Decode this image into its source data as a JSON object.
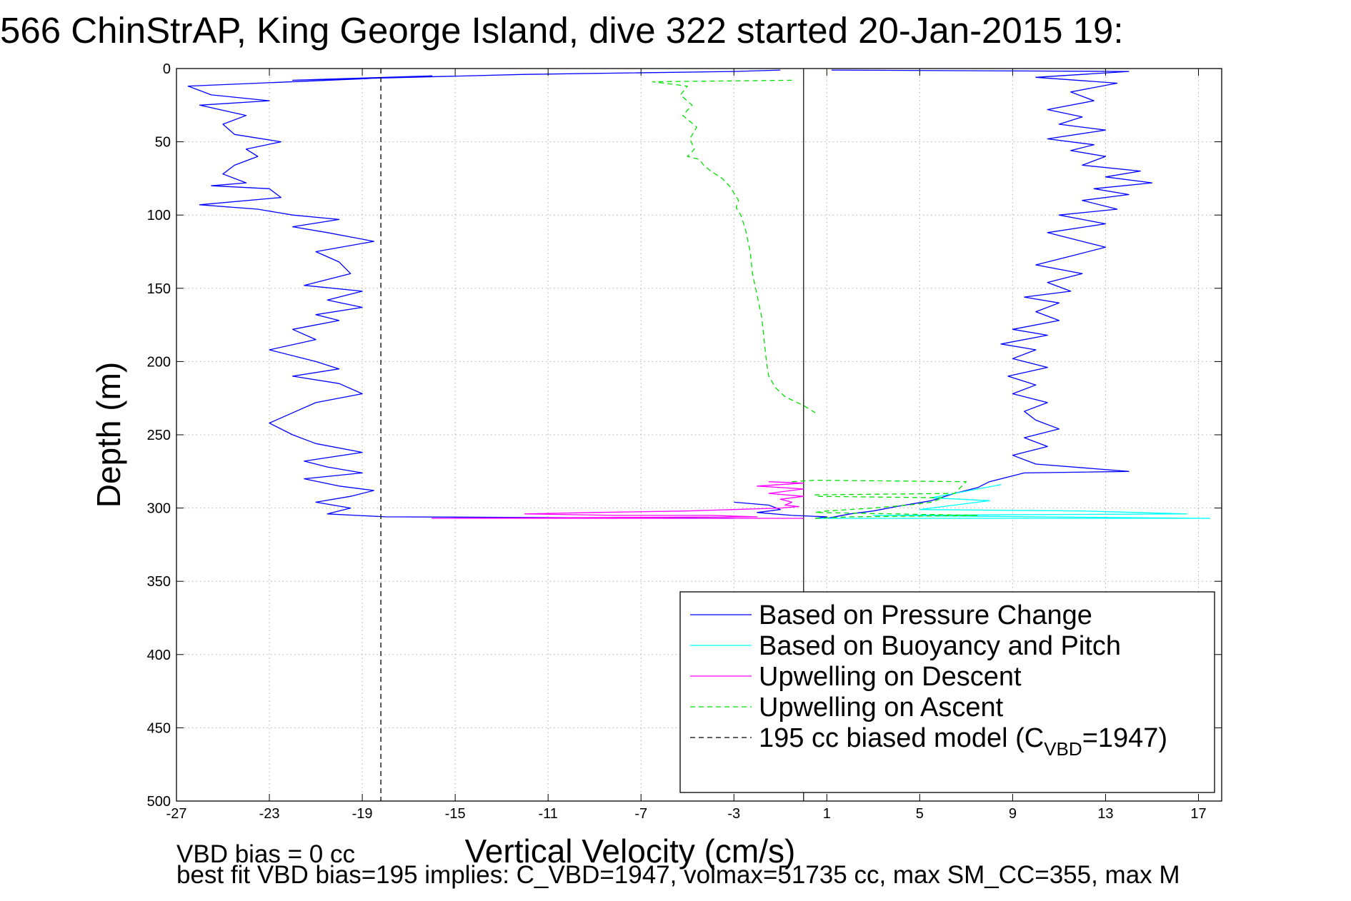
{
  "chart_data": {
    "type": "line",
    "title": "566 ChinStrAP, King George Island, dive 322 started 20-Jan-2015 19:",
    "xlabel": "Vertical Velocity (cm/s)",
    "ylabel": "Depth (m)",
    "xlim": [
      -27,
      18
    ],
    "ylim": [
      0,
      500
    ],
    "y_reversed": true,
    "grid": true,
    "legend_position": "lower-right",
    "x_ticks": [
      "-27",
      "-23",
      "-19",
      "-15",
      "-11",
      "-7",
      "-3",
      "1",
      "5",
      "9",
      "13",
      "17"
    ],
    "y_ticks": [
      "0",
      "50",
      "100",
      "150",
      "200",
      "250",
      "300",
      "350",
      "400",
      "450",
      "500"
    ],
    "notes": [
      "VBD bias = 0 cc",
      "best fit VBD bias=195 implies: C_VBD=1947, volmax=51735 cc, max SM_CC=355, max M"
    ],
    "series": [
      {
        "name": "Based on Pressure Change",
        "color": "#0000ff",
        "dash": "solid",
        "segments": [
          {
            "x": [
              -1.0,
              -3.0,
              -12.0,
              -22.0,
              -16.0,
              -26.5,
              -25.5,
              -23.0,
              -26.0,
              -24.0,
              -25.0,
              -24.5,
              -22.5,
              -24.0,
              -23.5,
              -24.5,
              -25.0,
              -24.0,
              -25.5,
              -23.0,
              -22.5,
              -26.0,
              -23.5,
              -22.0,
              -20.0,
              -22.0,
              -20.5,
              -18.5,
              -21.0,
              -20.0,
              -19.5,
              -21.5,
              -19.0,
              -20.5,
              -19.0,
              -21.0,
              -20.0,
              -22.0,
              -21.0,
              -23.0,
              -21.0,
              -20.0,
              -22.0,
              -20.0,
              -19.0,
              -21.0,
              -22.0,
              -23.0,
              -22.0,
              -21.0,
              -19.0,
              -21.5,
              -20.5,
              -19.0,
              -21.5,
              -20.0,
              -18.5,
              -19.5,
              -21.0,
              -19.5,
              -20.5,
              -18.0,
              -3.0
            ],
            "y": [
              1,
              2,
              4,
              8,
              5,
              12,
              18,
              22,
              25,
              32,
              38,
              45,
              50,
              55,
              60,
              66,
              72,
              78,
              80,
              82,
              88,
              93,
              96,
              100,
              103,
              108,
              112,
              118,
              125,
              132,
              140,
              148,
              152,
              158,
              163,
              168,
              172,
              178,
              185,
              192,
              200,
              205,
              210,
              215,
              222,
              228,
              235,
              242,
              250,
              256,
              262,
              268,
              272,
              276,
              280,
              285,
              288,
              292,
              296,
              300,
              304,
              306,
              307
            ]
          },
          {
            "x": [
              -3.0,
              -1.5,
              -1.0,
              -2.0,
              -0.5,
              1.0,
              0.5
            ],
            "y": [
              296,
              298,
              301,
              303,
              305,
              306,
              307
            ]
          },
          {
            "x": [
              1.2,
              14.0,
              10.0,
              13.5,
              11.5,
              12.5,
              10.5,
              12.0,
              11.0,
              13.0,
              10.5,
              12.5,
              11.5,
              13.0,
              12.0,
              14.5,
              13.0,
              15.0,
              12.5,
              14.0,
              12.0,
              13.5,
              11.0,
              13.0,
              10.5,
              12.0,
              13.0,
              11.5,
              10.0,
              12.0,
              10.5,
              11.5,
              9.5,
              11.0,
              10.0,
              11.0,
              9.0,
              10.5,
              8.5,
              10.0,
              9.0,
              10.5,
              8.8,
              10.0,
              9.0,
              10.5,
              9.5,
              10.0,
              11.0,
              9.5,
              10.5,
              9.0,
              10.0,
              14.0,
              9.5,
              9.0,
              8.0,
              7.5,
              6.5,
              5.5,
              4.0,
              3.0,
              2.0,
              1.0
            ],
            "y": [
              1,
              2,
              6,
              10,
              16,
              22,
              28,
              33,
              38,
              42,
              48,
              52,
              56,
              60,
              66,
              70,
              74,
              78,
              82,
              86,
              90,
              96,
              100,
              106,
              112,
              118,
              122,
              128,
              134,
              140,
              146,
              152,
              156,
              160,
              166,
              172,
              178,
              182,
              188,
              192,
              198,
              204,
              210,
              216,
              222,
              228,
              234,
              240,
              246,
              252,
              258,
              264,
              270,
              275,
              276,
              278,
              282,
              286,
              290,
              295,
              299,
              302,
              304,
              307
            ]
          }
        ]
      },
      {
        "name": "Based on Buoyancy and Pitch",
        "color": "#00ffff",
        "dash": "solid",
        "segments": [
          {
            "x": [
              8.5,
              7.5,
              6.5,
              5.5,
              8.0,
              7.0,
              6.0,
              5.0,
              12.0,
              16.5,
              3.0,
              10.0,
              17.5,
              2.0,
              0.5
            ],
            "y": [
              284,
              287,
              290,
              293,
              295,
              297,
              299,
              301,
              302,
              304,
              305,
              306,
              307,
              307,
              307
            ]
          }
        ]
      },
      {
        "name": "Upwelling on Descent",
        "color": "#ff00ff",
        "dash": "solid",
        "segments": [
          {
            "x": [
              -1.5,
              0.0,
              -2.0,
              0.0,
              -1.0,
              -1.5,
              0.0,
              -1.0,
              -0.5,
              -0.8,
              -0.2,
              -1.0,
              -3.0,
              -5.0,
              -9.0,
              -12.0,
              -8.0,
              -4.0,
              -2.0,
              -16.0,
              -2.0,
              0.0
            ],
            "y": [
              282,
              283,
              285,
              287,
              289,
              290,
              292,
              294,
              296,
              298,
              299,
              300,
              301,
              302,
              303,
              304,
              305,
              305,
              306,
              307,
              307,
              307
            ]
          }
        ]
      },
      {
        "name": "Upwelling on Ascent",
        "color": "#00e000",
        "dash": "dashed",
        "segments": [
          {
            "x": [
              -0.5,
              -6.5,
              -5.0,
              -5.3,
              -4.8,
              -5.2,
              -4.6,
              -4.9,
              -4.7,
              -5.0,
              -4.5,
              -4.3,
              -4.0,
              -3.5,
              -3.2,
              -3.0,
              -2.8,
              -2.9,
              -2.7,
              -2.5,
              -2.3,
              -2.2,
              -2.0,
              -1.8,
              -1.7,
              -1.6,
              -1.5,
              -1.2,
              -0.8,
              0.0,
              0.5
            ],
            "y": [
              8,
              9,
              12,
              18,
              25,
              32,
              40,
              48,
              55,
              60,
              62,
              66,
              70,
              75,
              80,
              85,
              90,
              95,
              100,
              110,
              125,
              140,
              155,
              170,
              185,
              200,
              210,
              218,
              224,
              230,
              235
            ]
          },
          {
            "x": [
              -0.5,
              0.5,
              7.0,
              6.5,
              0.5,
              0.5,
              6.0,
              5.5,
              4.5,
              3.0,
              1.0,
              0.5,
              7.5,
              2.0,
              0.5
            ],
            "y": [
              282,
              281,
              282,
              290,
              291,
              292,
              293,
              296,
              298,
              300,
              302,
              303,
              305,
              306,
              307
            ]
          }
        ]
      },
      {
        "name": "195 cc biased model (C",
        "name_sub": "VBD",
        "name_suffix": "=1947)",
        "color": "#000000",
        "dash": "dashed",
        "segments": [
          {
            "x": [
              -18.2,
              -18.2
            ],
            "y": [
              0,
              500
            ]
          }
        ]
      }
    ],
    "reference_line": {
      "x": 0.0,
      "color": "#000000",
      "dash": "solid"
    }
  }
}
